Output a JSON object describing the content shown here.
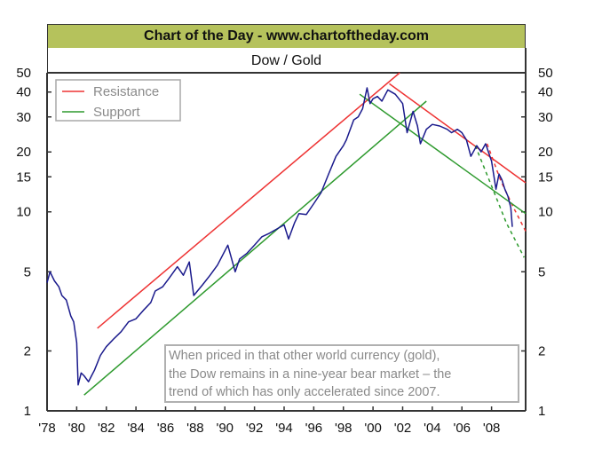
{
  "header": {
    "title": "Chart of the Day - www.chartoftheday.com",
    "subtitle": "Dow / Gold"
  },
  "annotation": {
    "lines": [
      "When priced in that other world currency (gold),",
      "the Dow remains in a nine-year bear market – the",
      "trend of which has only accelerated since 2007."
    ]
  },
  "colors": {
    "title_bg": "#b5c25c",
    "series": "#1a1a8c",
    "resistance": "#ee3333",
    "support": "#2e9a2e",
    "legend_text": "#8a8a8a"
  },
  "chart_data": {
    "type": "line",
    "title": "Dow / Gold",
    "xlabel": "",
    "ylabel": "",
    "yscale": "log",
    "xlim": [
      1978,
      2010.3
    ],
    "ylim": [
      1,
      50
    ],
    "grid": false,
    "x_ticks": [
      1978,
      1980,
      1982,
      1984,
      1986,
      1988,
      1990,
      1992,
      1994,
      1996,
      1998,
      2000,
      2002,
      2004,
      2006,
      2008
    ],
    "x_tick_labels": [
      "'78",
      "'80",
      "'82",
      "'84",
      "'86",
      "'88",
      "'90",
      "'92",
      "'94",
      "'96",
      "'98",
      "'00",
      "'02",
      "'04",
      "'06",
      "'08"
    ],
    "y_ticks": [
      1,
      2,
      5,
      10,
      15,
      20,
      30,
      40,
      50
    ],
    "y_tick_labels": [
      "1",
      "2",
      "5",
      "10",
      "15",
      "20",
      "30",
      "40",
      "50"
    ],
    "legend": {
      "placement": "top-left",
      "entries": [
        {
          "label": "Resistance",
          "color": "#ee3333"
        },
        {
          "label": "Support",
          "color": "#2e9a2e"
        }
      ]
    },
    "series": [
      {
        "name": "Dow / Gold",
        "x": [
          1978.0,
          1978.2,
          1978.5,
          1978.8,
          1979.0,
          1979.3,
          1979.6,
          1979.8,
          1980.0,
          1980.1,
          1980.3,
          1980.5,
          1980.8,
          1981.0,
          1981.2,
          1981.6,
          1982.0,
          1982.5,
          1983.0,
          1983.5,
          1984.0,
          1984.5,
          1985.0,
          1985.3,
          1985.8,
          1986.2,
          1986.8,
          1987.2,
          1987.6,
          1987.9,
          1988.5,
          1989.0,
          1989.5,
          1990.2,
          1990.7,
          1991.0,
          1991.5,
          1992.0,
          1992.5,
          1993.0,
          1993.5,
          1994.0,
          1994.3,
          1994.7,
          1995.0,
          1995.5,
          1996.0,
          1996.5,
          1997.0,
          1997.5,
          1998.0,
          1998.2,
          1998.7,
          1999.0,
          1999.3,
          1999.6,
          1999.8,
          2000.0,
          2000.3,
          2000.6,
          2001.0,
          2001.5,
          2002.0,
          2002.3,
          2002.7,
          2003.0,
          2003.2,
          2003.6,
          2004.0,
          2004.5,
          2005.0,
          2005.3,
          2005.7,
          2006.0,
          2006.3,
          2006.6,
          2007.0,
          2007.3,
          2007.6,
          2008.0,
          2008.3,
          2008.5,
          2008.7,
          2008.9,
          2009.1,
          2009.3,
          2009.4
        ],
        "values": [
          4.4,
          5.0,
          4.5,
          4.2,
          3.8,
          3.6,
          3.0,
          2.8,
          2.2,
          1.35,
          1.55,
          1.5,
          1.4,
          1.5,
          1.6,
          1.9,
          2.1,
          2.3,
          2.5,
          2.8,
          2.9,
          3.2,
          3.5,
          4.0,
          4.2,
          4.6,
          5.3,
          4.8,
          5.6,
          3.8,
          4.3,
          4.8,
          5.4,
          6.8,
          5.0,
          5.8,
          6.2,
          6.8,
          7.5,
          7.8,
          8.2,
          8.6,
          7.3,
          8.8,
          9.8,
          9.7,
          11.0,
          12.5,
          15.5,
          19.0,
          21.5,
          23.0,
          29.0,
          30.0,
          33.0,
          42.0,
          35.0,
          37.0,
          38.0,
          36.0,
          41.0,
          39.0,
          35.0,
          25.0,
          32.0,
          27.0,
          22.0,
          26.0,
          27.5,
          27.0,
          26.0,
          25.0,
          26.0,
          25.0,
          23.0,
          19.0,
          21.5,
          20.0,
          22.0,
          18.0,
          13.0,
          15.5,
          14.5,
          13.0,
          12.0,
          10.5,
          8.4
        ],
        "color": "#1a1a8c"
      },
      {
        "name": "Resistance",
        "segments": [
          {
            "style": "solid",
            "x": [
              1981.4,
              2001.8
            ],
            "values": [
              2.6,
              50.0
            ]
          },
          {
            "style": "solid",
            "x": [
              2001.1,
              2010.3
            ],
            "values": [
              44.0,
              14.0
            ]
          },
          {
            "style": "dashed",
            "x": [
              2007.7,
              2008.6,
              2009.4,
              2010.3
            ],
            "values": [
              22.0,
              14.5,
              10.8,
              8.0
            ]
          }
        ],
        "color": "#ee3333"
      },
      {
        "name": "Support",
        "segments": [
          {
            "style": "solid",
            "x": [
              1980.5,
              2003.6
            ],
            "values": [
              1.2,
              36.0
            ]
          },
          {
            "style": "solid",
            "x": [
              1999.1,
              2010.3
            ],
            "values": [
              39.0,
              9.8
            ]
          },
          {
            "style": "dashed",
            "x": [
              2006.9,
              2008.0,
              2009.0,
              2010.2
            ],
            "values": [
              21.5,
              13.5,
              8.8,
              5.9
            ]
          }
        ],
        "color": "#2e9a2e"
      }
    ]
  }
}
